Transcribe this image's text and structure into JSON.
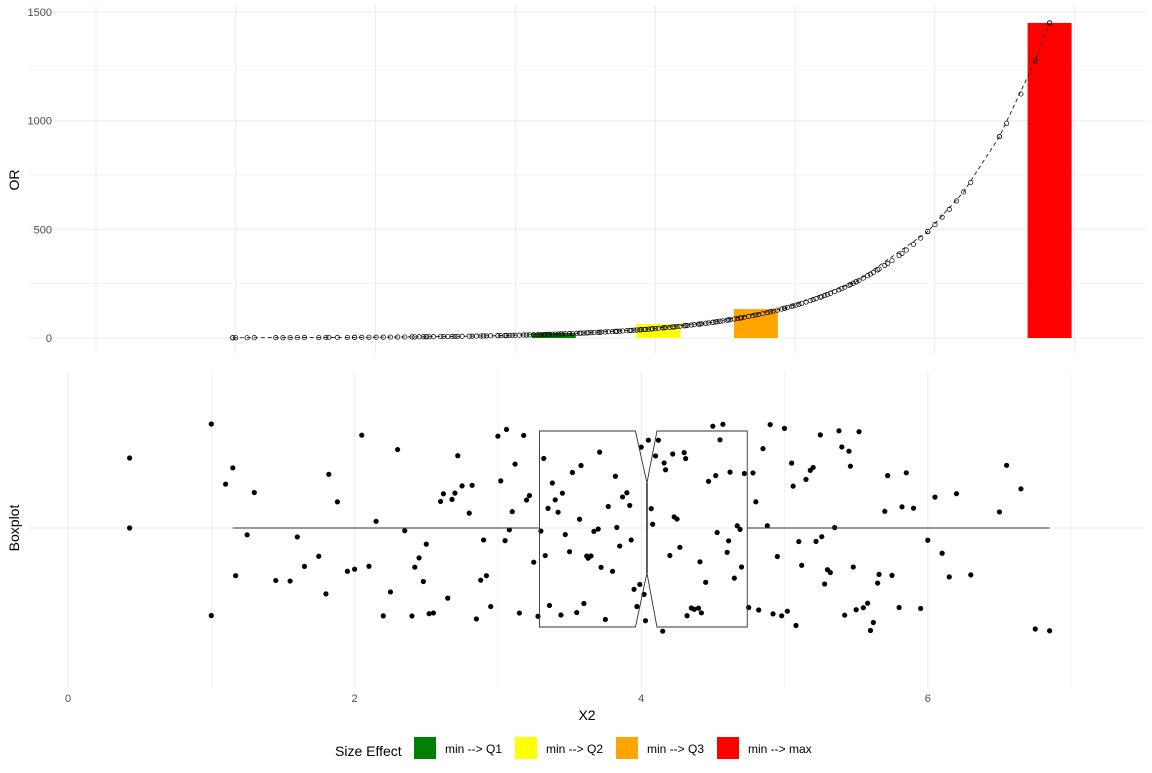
{
  "chart_data": [
    {
      "type": "line",
      "panel": "top",
      "ylabel": "OR",
      "ylim": [
        0,
        1500
      ],
      "xlim": [
        -0.2,
        7.5
      ],
      "yticks": [
        "0",
        "500",
        "1000",
        "1500"
      ],
      "ytick_values": [
        0,
        500,
        1000,
        1500
      ],
      "grid": true,
      "line_style": "dashed with open circle markers",
      "curve": {
        "x": [
          1.15,
          1.5,
          2.0,
          2.5,
          3.0,
          3.5,
          4.0,
          4.5,
          5.0,
          5.5,
          6.0,
          6.25,
          6.5,
          6.75,
          6.85
        ],
        "y": [
          1,
          1.56,
          2.96,
          5.61,
          10.6,
          20.1,
          38.1,
          72.1,
          136.6,
          258.7,
          490,
          672,
          927,
          1276,
          1450
        ]
      },
      "bars": [
        {
          "label": "min --> Q1",
          "x": 3.39,
          "value": 23,
          "color": "#008000"
        },
        {
          "label": "min --> Q2",
          "x": 4.12,
          "value": 64,
          "color": "#FFFF00"
        },
        {
          "label": "min --> Q3",
          "x": 4.8,
          "value": 133,
          "color": "#FFA500"
        },
        {
          "label": "min --> max",
          "x": 6.85,
          "value": 1450,
          "color": "#FF0000"
        }
      ]
    },
    {
      "type": "boxplot",
      "panel": "bottom",
      "xlabel": "X2",
      "ylabel": "Boxplot",
      "xlim": [
        -0.2,
        7.5
      ],
      "xticks": [
        "0",
        "2",
        "4",
        "6"
      ],
      "xtick_values": [
        0,
        2,
        4,
        6
      ],
      "grid": true,
      "notched": true,
      "box": {
        "min": 1.15,
        "q1": 3.29,
        "median": 4.04,
        "q3": 4.74,
        "max": 6.85,
        "notch_low": 3.96,
        "notch_high": 4.11
      },
      "outliers": [
        0.43
      ],
      "jitter_points_x": [
        0.43,
        0.43,
        1.0,
        1.0,
        1.1,
        1.15,
        1.17,
        1.25,
        1.3,
        1.45,
        1.55,
        1.6,
        1.65,
        1.75,
        1.8,
        1.82,
        1.88,
        1.95,
        2.0,
        2.05,
        2.1,
        2.15,
        2.2,
        2.25,
        2.3,
        2.35,
        2.4,
        2.42,
        2.45,
        2.5,
        2.52,
        2.55,
        2.6,
        2.62,
        2.65,
        2.7,
        2.72,
        2.75,
        2.8,
        2.82,
        2.85,
        2.9,
        2.92,
        2.95,
        3.0,
        3.02,
        3.05,
        3.08,
        3.1,
        3.12,
        3.15,
        3.18,
        3.2,
        3.22,
        3.25,
        3.28,
        3.3,
        3.32,
        3.35,
        3.38,
        3.4,
        3.42,
        3.45,
        3.47,
        3.5,
        3.52,
        3.55,
        3.57,
        3.6,
        3.62,
        3.65,
        3.67,
        3.7,
        3.72,
        3.75,
        3.77,
        3.8,
        3.82,
        3.85,
        3.87,
        3.9,
        3.92,
        3.95,
        3.97,
        4.0,
        4.02,
        4.05,
        4.07,
        4.1,
        4.12,
        4.15,
        4.17,
        4.2,
        4.22,
        4.25,
        4.27,
        4.3,
        4.32,
        4.35,
        4.37,
        4.4,
        4.42,
        4.45,
        4.47,
        4.5,
        4.52,
        4.55,
        4.57,
        4.6,
        4.62,
        4.65,
        4.67,
        4.7,
        4.72,
        4.75,
        4.78,
        4.8,
        4.82,
        4.85,
        4.88,
        4.9,
        4.92,
        4.95,
        4.98,
        5.0,
        5.02,
        5.05,
        5.08,
        5.1,
        5.12,
        5.15,
        5.18,
        5.2,
        5.22,
        5.25,
        5.28,
        5.3,
        5.32,
        5.35,
        5.38,
        5.4,
        5.42,
        5.45,
        5.48,
        5.5,
        5.52,
        5.55,
        5.58,
        5.6,
        5.62,
        5.65,
        5.7,
        5.72,
        5.75,
        5.8,
        5.82,
        5.85,
        5.9,
        5.95,
        6.0,
        6.05,
        6.1,
        6.15,
        6.2,
        6.3,
        6.5,
        6.55,
        6.65,
        6.75,
        6.85,
        3.33,
        3.36,
        3.44,
        3.58,
        3.63,
        3.71,
        3.83,
        3.93,
        3.99,
        4.03,
        4.08,
        4.16,
        4.23,
        4.31,
        4.41,
        4.53,
        4.61,
        4.69,
        2.48,
        2.68,
        2.88,
        3.06,
        5.06,
        5.26,
        5.46,
        5.66
      ]
    }
  ],
  "legend": {
    "title": "Size Effect",
    "position": "bottom",
    "items": [
      {
        "label": "min --> Q1",
        "color": "#008000"
      },
      {
        "label": "min --> Q2",
        "color": "#FFFF00"
      },
      {
        "label": "min --> Q3",
        "color": "#FFA500"
      },
      {
        "label": "min --> max",
        "color": "#FF0000"
      }
    ]
  }
}
